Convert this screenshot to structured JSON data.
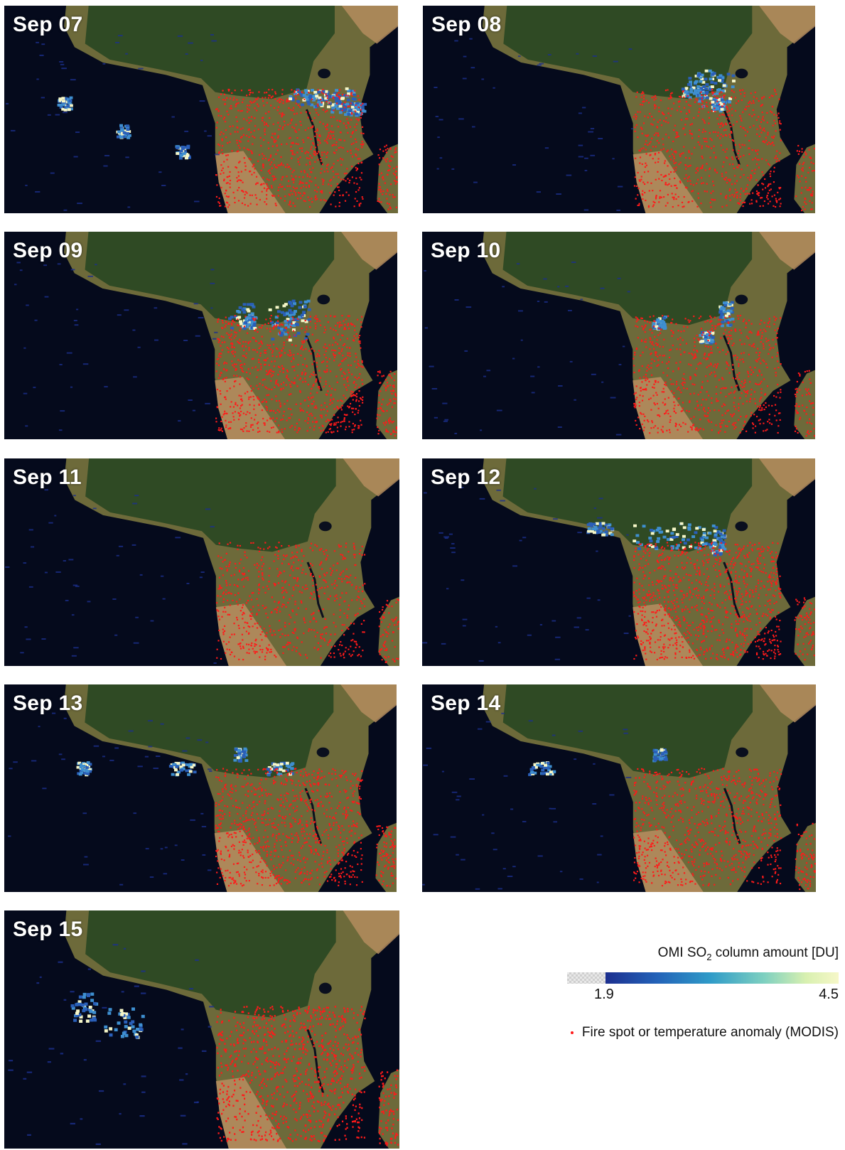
{
  "panels": [
    {
      "date": "Sep 07",
      "so2": [
        [
          0.77,
          0.14,
          3,
          1
        ],
        [
          0.8,
          0.18,
          3,
          1
        ],
        [
          0.86,
          0.18,
          2,
          2
        ],
        [
          0.88,
          0.24,
          2,
          1
        ],
        [
          0.15,
          0.2,
          1,
          1
        ],
        [
          0.3,
          0.4,
          1,
          1
        ],
        [
          0.45,
          0.55,
          1,
          1
        ]
      ],
      "fire_density": 1.0
    },
    {
      "date": "Sep 08",
      "so2": [
        [
          0.72,
          0.05,
          3,
          2
        ],
        [
          0.74,
          0.12,
          3,
          3
        ],
        [
          0.69,
          0.12,
          2,
          1
        ],
        [
          0.75,
          0.2,
          1,
          1
        ]
      ],
      "fire_density": 0.9
    },
    {
      "date": "Sep 09",
      "so2": [
        [
          0.72,
          0.14,
          3,
          3
        ],
        [
          0.74,
          0.08,
          2,
          2
        ],
        [
          0.6,
          0.1,
          2,
          2
        ],
        [
          0.62,
          0.15,
          1,
          1
        ]
      ],
      "fire_density": 1.1
    },
    {
      "date": "Sep 10",
      "so2": [
        [
          0.77,
          0.08,
          1,
          2
        ],
        [
          0.72,
          0.25,
          1,
          1
        ],
        [
          0.6,
          0.15,
          1,
          1
        ]
      ],
      "fire_density": 0.9
    },
    {
      "date": "Sep 11",
      "so2": [],
      "fire_density": 0.8
    },
    {
      "date": "Sep 12",
      "so2": [
        [
          0.6,
          0.06,
          4,
          2
        ],
        [
          0.7,
          0.05,
          3,
          2
        ],
        [
          0.45,
          0.0,
          2,
          1
        ],
        [
          0.75,
          0.1,
          1,
          2
        ]
      ],
      "fire_density": 1.2
    },
    {
      "date": "Sep 13",
      "so2": [
        [
          0.45,
          0.1,
          2,
          1
        ],
        [
          0.6,
          0.0,
          1,
          1
        ],
        [
          0.2,
          0.1,
          1,
          1
        ],
        [
          0.7,
          0.1,
          2,
          1
        ]
      ],
      "fire_density": 1.1
    },
    {
      "date": "Sep 14",
      "so2": [
        [
          0.3,
          0.1,
          2,
          1
        ],
        [
          0.6,
          0.0,
          1,
          1
        ]
      ],
      "fire_density": 1.0
    },
    {
      "date": "Sep 15",
      "so2": [
        [
          0.3,
          0.2,
          3,
          2
        ],
        [
          0.2,
          0.1,
          2,
          2
        ]
      ],
      "fire_density": 1.1
    }
  ],
  "legend": {
    "title_prefix": "OMI SO",
    "title_sub": "2",
    "title_suffix": " column amount [DU]",
    "min_label": "1.9",
    "max_label": "4.5",
    "fire_label": "Fire spot or temperature anomaly (MODIS)"
  },
  "colors": {
    "ocean": "#050a1c",
    "forest": "#2f4a24",
    "savanna": "#6d6a3a",
    "desert": "#b48c5e",
    "fire": "#ff1a1a",
    "so2_low": "#1c2f8f",
    "so2_high": "#f6f7c8"
  }
}
